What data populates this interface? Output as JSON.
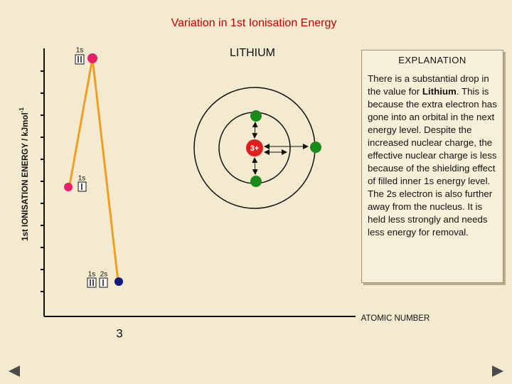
{
  "title": "Variation in 1st Ionisation Energy",
  "y_axis_label": "1st IONISATION ENERGY / kJmol",
  "y_axis_label_sup": "-1",
  "x_axis_label": "ATOMIC NUMBER",
  "atomic_number": "3",
  "element": "LITHIUM",
  "nucleus_charge": "3+",
  "orbital_labels": {
    "top": "1s",
    "middle": "1s",
    "bottom_1s": "1s",
    "bottom_2s": "2s"
  },
  "explanation": {
    "heading": "EXPLANATION",
    "text_start": "There is a substantial drop in the value for ",
    "text_bold": "Lithium",
    "text_end": ". This is because the extra electron has gone into an orbital in the next energy level. Despite the increased nuclear  charge, the effective nuclear charge is less because of the shielding effect of filled inner 1s energy level.  The 2s electron is also further away from the nucleus. It is held less strongly and needs less energy for removal."
  }
}
